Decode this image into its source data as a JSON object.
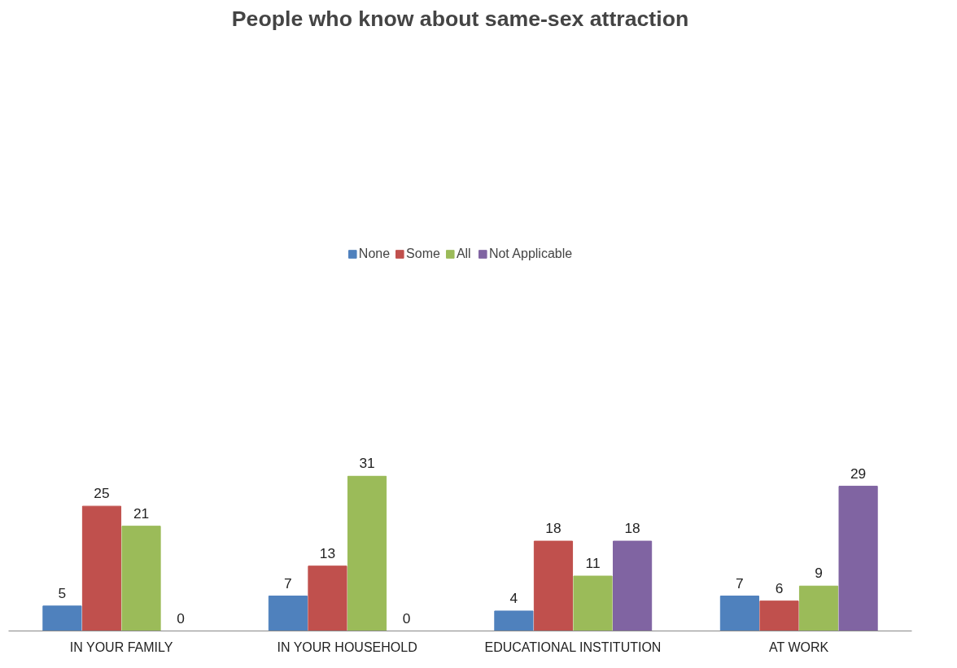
{
  "chart_data": {
    "type": "bar",
    "title": "People who know about same-sex attraction",
    "categories": [
      "IN YOUR FAMILY",
      "IN YOUR HOUSEHOLD",
      "EDUCATIONAL INSTITUTION",
      "AT WORK"
    ],
    "series": [
      {
        "name": "None",
        "color": "#4f81bd",
        "values": [
          5,
          7,
          4,
          7
        ]
      },
      {
        "name": "Some",
        "color": "#c0504d",
        "values": [
          25,
          13,
          18,
          6
        ]
      },
      {
        "name": "All",
        "color": "#9bbb59",
        "values": [
          21,
          31,
          11,
          9
        ]
      },
      {
        "name": "Not Applicable",
        "color": "#8064a2",
        "values": [
          0,
          0,
          18,
          29
        ]
      }
    ],
    "data_labels": true,
    "legend": "top",
    "grid": false
  }
}
